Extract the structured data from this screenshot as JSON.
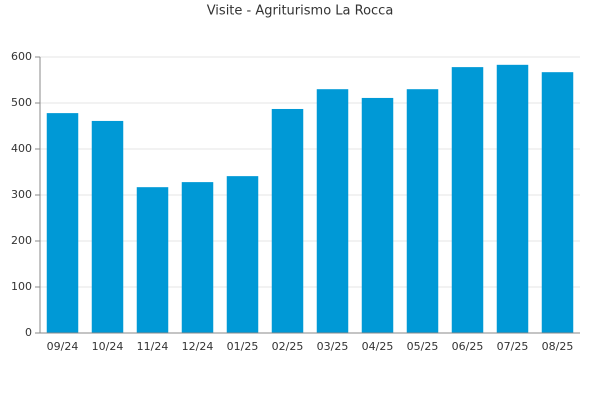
{
  "chart_data": {
    "type": "bar",
    "title": "Visite - Agriturismo La Rocca",
    "categories": [
      "09/24",
      "10/24",
      "11/24",
      "12/24",
      "01/25",
      "02/25",
      "03/25",
      "04/25",
      "05/25",
      "06/25",
      "07/25",
      "08/25"
    ],
    "values": [
      478,
      461,
      317,
      328,
      341,
      487,
      530,
      511,
      530,
      578,
      583,
      567
    ],
    "color": "#0099d6",
    "ylim": [
      0,
      600
    ],
    "yticks": [
      0,
      100,
      200,
      300,
      400,
      500,
      600
    ],
    "grid": true
  }
}
